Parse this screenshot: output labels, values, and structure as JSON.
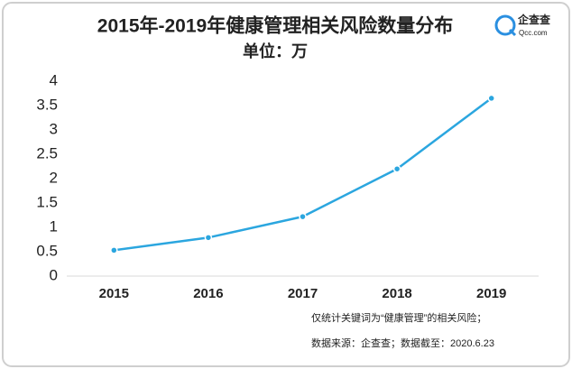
{
  "chart_data": {
    "type": "line",
    "title": "2015年-2019年健康管理相关风险数量分布",
    "subtitle": "单位：万",
    "categories": [
      "2015",
      "2016",
      "2017",
      "2018",
      "2019"
    ],
    "values": [
      0.53,
      0.79,
      1.22,
      2.2,
      3.65
    ],
    "color": "#2ba6df",
    "ylim": [
      0,
      4
    ],
    "yticks": [
      0,
      0.5,
      1,
      1.5,
      2,
      2.5,
      3,
      3.5,
      4
    ],
    "grid": false,
    "annotations": [
      "仅统计关键词为“健康管理”的相关风险；",
      "数据来源：企查查；数据截至：2020.6.23"
    ]
  },
  "logo": {
    "name": "企查查",
    "site": "Qcc.com"
  }
}
